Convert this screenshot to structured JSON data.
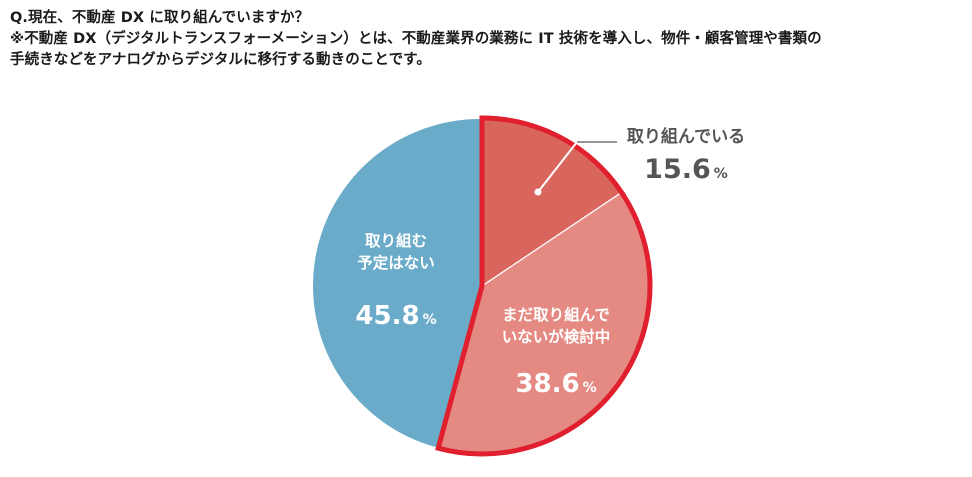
{
  "question": {
    "title": "Q.現在、不動産 DX に取り組んでいますか？",
    "note_line1": "※不動産 DX（デジタルトランスフォーメーション）とは、不動産業界の業務に IT 技術を導入し、物件・顧客管理や書類の",
    "note_line2": "手続きなどをアナログからデジタルに移行する動きのことです。"
  },
  "chart_data": {
    "type": "pie",
    "start": "12 o'clock, clockwise",
    "unit": "%",
    "slices": [
      {
        "label": "取り組んでいる",
        "label_lines": [
          "取り組んでいる"
        ],
        "value": 15.6,
        "value_text": "15.6",
        "color": "#d9665c",
        "label_color": "#555555",
        "highlighted": true
      },
      {
        "label": "まだ取り組んでいないが検討中",
        "label_lines": [
          "まだ取り組んで",
          "いないが検討中"
        ],
        "value": 38.6,
        "value_text": "38.6",
        "color": "#e58a83",
        "label_color": "#ffffff",
        "highlighted": true
      },
      {
        "label": "取り組む予定はない",
        "label_lines": [
          "取り組む",
          "予定はない"
        ],
        "value": 45.8,
        "value_text": "45.8",
        "color": "#6aabc9",
        "label_color": "#ffffff",
        "highlighted": false
      }
    ],
    "highlight_outline_color": "#e0202e"
  }
}
